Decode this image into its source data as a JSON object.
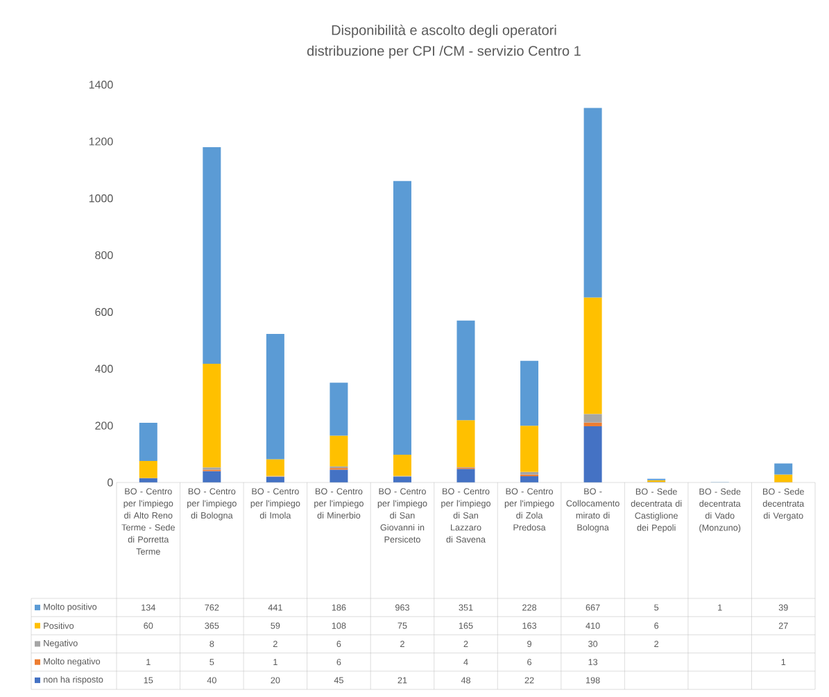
{
  "chart_data": {
    "type": "bar",
    "stacked": true,
    "title": "Disponibilità e ascolto degli operatori",
    "subtitle": "distribuzione per CPI /CM - servizio Centro 1",
    "categories": [
      "BO - Centro per l'impiego di Alto Reno Terme - Sede di Porretta Terme",
      "BO - Centro per l'impiego di Bologna",
      "BO - Centro per l'impiego di Imola",
      "BO - Centro per l'impiego di Minerbio",
      "BO - Centro per l'impiego di San Giovanni in Persiceto",
      "BO - Centro per l'impiego di San Lazzaro di Savena",
      "BO - Centro per l'impiego di Zola Predosa",
      "BO - Collocamento mirato di Bologna",
      "BO - Sede decentrata di Castiglione dei Pepoli",
      "BO - Sede decentrata di Vado (Monzuno)",
      "BO - Sede decentrata di Vergato"
    ],
    "series": [
      {
        "name": "non ha risposto",
        "color": "#4472c4",
        "values": [
          15,
          40,
          20,
          45,
          21,
          48,
          22,
          198,
          null,
          null,
          null
        ]
      },
      {
        "name": "Molto negativo",
        "color": "#ed7d31",
        "values": [
          1,
          5,
          1,
          6,
          null,
          4,
          6,
          13,
          null,
          null,
          1
        ]
      },
      {
        "name": "Negativo",
        "color": "#a5a5a5",
        "values": [
          null,
          8,
          2,
          6,
          2,
          2,
          9,
          30,
          2,
          null,
          null
        ]
      },
      {
        "name": "Positivo",
        "color": "#ffc000",
        "values": [
          60,
          365,
          59,
          108,
          75,
          165,
          163,
          410,
          6,
          null,
          27
        ]
      },
      {
        "name": "Molto positivo",
        "color": "#5b9bd5",
        "values": [
          134,
          762,
          441,
          186,
          963,
          351,
          228,
          667,
          5,
          1,
          39
        ]
      }
    ],
    "ylim": [
      0,
      1400
    ],
    "yticks": [
      0,
      200,
      400,
      600,
      800,
      1000,
      1200,
      1400
    ],
    "data_labels": true,
    "legend": "bottom"
  }
}
